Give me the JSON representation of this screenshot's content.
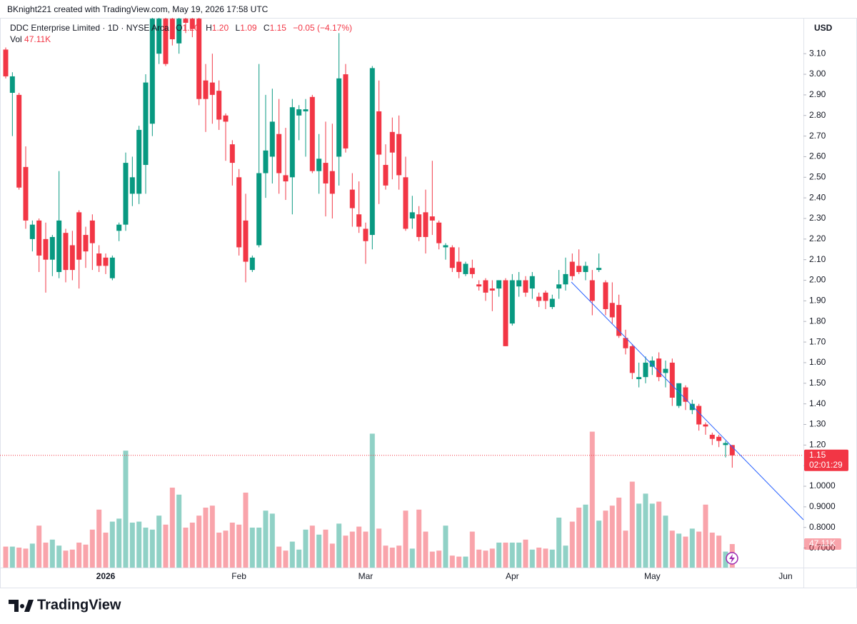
{
  "watermark": "BKnight221 created with TradingView.com, May 19, 2026 17:58 UTC",
  "chart_data": {
    "type": "candlestick",
    "title": "DDC Enterprise Limited · 1D · NYSE Arca",
    "ohlc_legend": [
      {
        "label": "O",
        "value": "1.20"
      },
      {
        "label": "H",
        "value": "1.20"
      },
      {
        "label": "L",
        "value": "1.09"
      },
      {
        "label": "C",
        "value": "1.15"
      }
    ],
    "change": "−0.05 (−4.17%)",
    "volume_title": "Vol",
    "volume_label": "47.11K",
    "currency": "USD",
    "countdown": "02:01:29",
    "up_color": "#089981",
    "down_color": "#f23645",
    "ylim": [
      0.605,
      3.274
    ],
    "yticks": [
      {
        "value": 3.1,
        "label": "3.10"
      },
      {
        "value": 3.0,
        "label": "3.00"
      },
      {
        "value": 2.9,
        "label": "2.90"
      },
      {
        "value": 2.8,
        "label": "2.80"
      },
      {
        "value": 2.7,
        "label": "2.70"
      },
      {
        "value": 2.6,
        "label": "2.60"
      },
      {
        "value": 2.5,
        "label": "2.50"
      },
      {
        "value": 2.4,
        "label": "2.40"
      },
      {
        "value": 2.3,
        "label": "2.30"
      },
      {
        "value": 2.2,
        "label": "2.20"
      },
      {
        "value": 2.1,
        "label": "2.10"
      },
      {
        "value": 2.0,
        "label": "2.00"
      },
      {
        "value": 1.9,
        "label": "1.90"
      },
      {
        "value": 1.8,
        "label": "1.80"
      },
      {
        "value": 1.7,
        "label": "1.70"
      },
      {
        "value": 1.6,
        "label": "1.60"
      },
      {
        "value": 1.5,
        "label": "1.50"
      },
      {
        "value": 1.4,
        "label": "1.40"
      },
      {
        "value": 1.3,
        "label": "1.30"
      },
      {
        "value": 1.2,
        "label": "1.20"
      },
      {
        "value": 1.1,
        "label": "1.10"
      },
      {
        "value": 1.0,
        "label": "1.0000"
      },
      {
        "value": 0.9,
        "label": "0.9000"
      },
      {
        "value": 0.8,
        "label": "0.8000"
      },
      {
        "value": 0.7,
        "label": "0.7000"
      }
    ],
    "volume_ylim": [
      0,
      1100
    ],
    "categories": [
      null,
      null,
      null,
      null,
      null,
      null,
      null,
      null,
      null,
      null,
      null,
      null,
      null,
      null,
      null,
      "2026",
      null,
      null,
      null,
      null,
      null,
      null,
      null,
      null,
      null,
      null,
      null,
      null,
      null,
      null,
      null,
      null,
      null,
      null,
      null,
      "Feb",
      null,
      null,
      null,
      null,
      null,
      null,
      null,
      null,
      null,
      null,
      null,
      null,
      null,
      null,
      null,
      null,
      null,
      null,
      "Mar",
      null,
      null,
      null,
      null,
      null,
      null,
      null,
      null,
      null,
      null,
      null,
      null,
      null,
      null,
      null,
      null,
      null,
      null,
      null,
      null,
      null,
      "Apr",
      null,
      null,
      null,
      null,
      null,
      null,
      null,
      null,
      null,
      null,
      null,
      null,
      null,
      null,
      null,
      null,
      null,
      null,
      null,
      null,
      "May",
      null,
      null,
      null,
      null,
      null,
      null,
      null,
      null,
      null,
      null,
      null,
      null,
      null,
      null,
      null,
      null,
      null,
      null,
      null,
      "Jun",
      null,
      null
    ],
    "open": [
      3.12,
      2.91,
      2.9,
      2.55,
      2.2,
      2.29,
      2.2,
      2.1,
      2.04,
      2.23,
      2.17,
      2.33,
      2.22,
      2.29,
      2.13,
      2.11,
      2.01,
      2.24,
      2.27,
      2.42,
      2.42,
      2.56,
      2.76,
      3.1,
      3.27,
      3.27,
      3.15,
      3.27,
      3.27,
      3.27,
      2.97,
      2.96,
      2.92,
      2.8,
      2.66,
      2.5,
      2.29,
      2.05,
      2.17,
      2.52,
      2.6,
      2.71,
      2.51,
      2.5,
      2.8,
      2.82,
      2.89,
      2.53,
      2.57,
      2.53,
      2.6,
      3.0,
      2.44,
      2.32,
      2.25,
      2.22,
      2.82,
      2.56,
      2.72,
      2.71,
      2.5,
      2.3,
      2.32,
      2.33,
      2.31,
      2.28,
      2.16,
      2.16,
      2.09,
      2.03,
      2.06,
      1.98,
      2.0,
      1.96,
      1.96,
      2.0,
      1.79,
      1.97,
      2.0,
      1.96,
      1.92,
      1.94,
      1.87,
      1.96,
      1.98,
      2.09,
      2.07,
      2.04,
      2.0,
      2.05,
      1.99,
      1.89,
      1.88,
      1.72,
      1.68,
      1.52,
      1.53,
      1.58,
      1.62,
      1.55,
      1.6,
      1.39,
      1.48,
      1.37,
      1.39,
      1.3,
      1.25,
      1.24,
      1.2,
      1.2,
      null,
      null,
      null,
      null,
      null,
      null,
      null,
      null,
      null,
      null
    ],
    "high": [
      3.13,
      3.01,
      2.91,
      2.65,
      2.29,
      2.3,
      2.28,
      2.22,
      2.53,
      2.25,
      2.24,
      2.34,
      2.26,
      2.32,
      2.17,
      2.13,
      2.12,
      2.28,
      2.62,
      2.6,
      2.75,
      3.0,
      3.3,
      3.3,
      3.3,
      3.3,
      3.3,
      3.3,
      3.3,
      3.3,
      3.05,
      3.1,
      2.97,
      2.81,
      2.68,
      2.54,
      2.42,
      2.12,
      3.05,
      2.9,
      2.93,
      2.88,
      2.74,
      2.88,
      2.85,
      2.88,
      2.9,
      2.71,
      2.77,
      2.76,
      3.2,
      3.05,
      2.52,
      2.48,
      2.28,
      3.04,
      2.97,
      2.66,
      2.79,
      2.8,
      2.6,
      2.41,
      2.36,
      2.44,
      2.58,
      2.29,
      2.18,
      2.17,
      2.16,
      2.09,
      2.1,
      2.0,
      2.01,
      2.0,
      2.0,
      2.01,
      2.03,
      2.04,
      2.02,
      2.04,
      1.94,
      1.95,
      1.93,
      2.05,
      2.11,
      2.13,
      2.15,
      2.09,
      2.05,
      2.13,
      2.0,
      1.99,
      1.93,
      1.76,
      1.69,
      1.6,
      1.63,
      1.63,
      1.65,
      1.61,
      1.62,
      1.5,
      1.49,
      1.42,
      1.4,
      1.31,
      1.26,
      1.25,
      1.22,
      1.2,
      null,
      null,
      null,
      null,
      null,
      null,
      null,
      null,
      null,
      null
    ],
    "low": [
      2.98,
      2.7,
      2.44,
      2.25,
      2.14,
      2.04,
      1.94,
      2.02,
      2.01,
      1.99,
      2.0,
      1.96,
      2.06,
      2.05,
      2.04,
      2.03,
      2.0,
      2.19,
      2.24,
      2.36,
      2.37,
      2.42,
      2.7,
      3.05,
      3.04,
      3.14,
      3.1,
      3.2,
      3.18,
      2.85,
      2.72,
      2.76,
      2.73,
      2.58,
      2.46,
      2.12,
      1.99,
      2.04,
      2.16,
      2.4,
      2.47,
      2.42,
      2.39,
      2.32,
      2.68,
      2.6,
      2.52,
      2.42,
      2.31,
      2.3,
      2.46,
      2.62,
      2.26,
      2.23,
      2.08,
      2.15,
      2.37,
      2.44,
      2.49,
      2.44,
      2.24,
      2.25,
      2.19,
      2.13,
      2.22,
      2.15,
      2.1,
      2.04,
      2.01,
      2.02,
      2.01,
      1.95,
      1.9,
      1.85,
      1.92,
      1.68,
      1.78,
      1.92,
      1.92,
      1.91,
      1.87,
      1.86,
      1.86,
      1.91,
      1.95,
      2.0,
      2.03,
      2.0,
      1.83,
      2.04,
      1.83,
      1.79,
      1.72,
      1.64,
      1.52,
      1.48,
      1.5,
      1.54,
      1.51,
      1.48,
      1.39,
      1.38,
      1.37,
      1.35,
      1.27,
      1.25,
      1.2,
      1.19,
      1.14,
      1.09,
      null,
      null,
      null,
      null,
      null,
      null,
      null,
      null,
      null,
      null
    ],
    "close": [
      2.99,
      2.99,
      2.45,
      2.29,
      2.27,
      2.12,
      2.1,
      2.21,
      2.29,
      2.05,
      2.05,
      2.1,
      2.14,
      2.18,
      2.07,
      2.07,
      2.11,
      2.27,
      2.57,
      2.5,
      2.73,
      2.96,
      3.27,
      3.27,
      3.05,
      3.17,
      3.27,
      3.25,
      3.22,
      2.88,
      2.88,
      2.9,
      2.78,
      2.77,
      2.57,
      2.16,
      2.09,
      2.11,
      2.52,
      2.63,
      2.77,
      2.52,
      2.48,
      2.84,
      2.83,
      2.83,
      2.53,
      2.59,
      2.47,
      2.42,
      2.98,
      2.64,
      2.35,
      2.26,
      2.19,
      3.03,
      2.61,
      2.46,
      2.62,
      2.51,
      2.25,
      2.33,
      2.21,
      2.21,
      2.29,
      2.18,
      2.17,
      2.06,
      2.04,
      2.08,
      2.03,
      1.97,
      1.94,
      1.95,
      2.0,
      1.68,
      2.0,
      2.0,
      1.94,
      2.02,
      1.9,
      1.9,
      1.91,
      1.98,
      2.03,
      2.02,
      2.04,
      2.07,
      1.9,
      2.06,
      1.86,
      1.82,
      1.73,
      1.67,
      1.55,
      1.53,
      1.6,
      1.61,
      1.53,
      1.57,
      1.43,
      1.5,
      1.41,
      1.4,
      1.3,
      1.29,
      1.23,
      1.22,
      1.21,
      1.15,
      null,
      null,
      null,
      null,
      null,
      null,
      null,
      null,
      null,
      null
    ],
    "volume": [
      42,
      42,
      40,
      38,
      48,
      84,
      50,
      56,
      44,
      34,
      36,
      50,
      46,
      76,
      116,
      70,
      92,
      98,
      234,
      90,
      92,
      80,
      76,
      104,
      86,
      160,
      146,
      80,
      90,
      104,
      120,
      124,
      70,
      74,
      90,
      86,
      150,
      80,
      80,
      114,
      108,
      42,
      34,
      52,
      36,
      76,
      84,
      66,
      76,
      48,
      88,
      64,
      72,
      82,
      72,
      268,
      78,
      44,
      40,
      44,
      114,
      38,
      116,
      72,
      32,
      34,
      84,
      24,
      22,
      22,
      72,
      36,
      34,
      38,
      50,
      50,
      50,
      50,
      56,
      36,
      40,
      38,
      36,
      100,
      44,
      92,
      120,
      126,
      272,
      94,
      114,
      124,
      140,
      74,
      172,
      128,
      148,
      128,
      132,
      104,
      74,
      68,
      62,
      78,
      72,
      126,
      70,
      64,
      32,
      47.11,
      null,
      null,
      null,
      null,
      null,
      null,
      null,
      null,
      null,
      null
    ]
  },
  "footer": {
    "brand": "TradingView"
  }
}
